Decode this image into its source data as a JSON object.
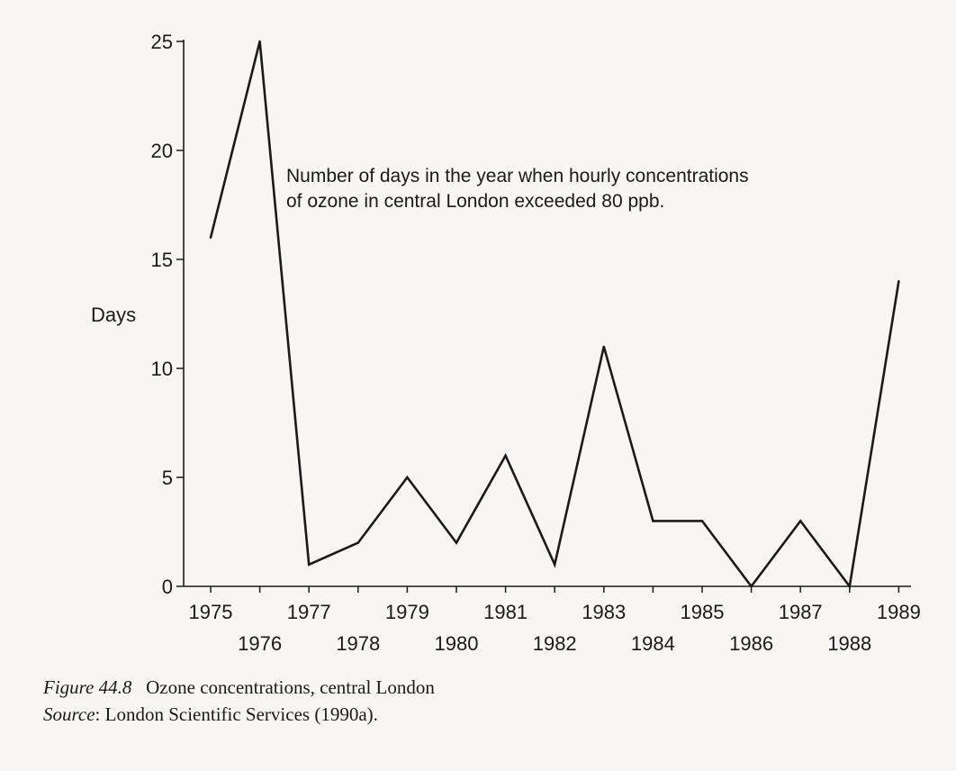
{
  "chart_data": {
    "type": "line",
    "ylabel": "Days",
    "xlabel": "",
    "ylim": [
      0,
      25
    ],
    "yticks": [
      0,
      5,
      10,
      15,
      20,
      25
    ],
    "x": [
      1975,
      1976,
      1977,
      1978,
      1979,
      1980,
      1981,
      1982,
      1983,
      1984,
      1985,
      1986,
      1987,
      1988,
      1989
    ],
    "x_tick_labels": [
      "1975",
      "1976",
      "1977",
      "1978",
      "1979",
      "1980",
      "1981",
      "1982",
      "1983",
      "1984",
      "1985",
      "1986",
      "1987",
      "1988",
      "1989"
    ],
    "series": [
      {
        "values": [
          16,
          25,
          1,
          2,
          5,
          2,
          6,
          1,
          11,
          3,
          3,
          0,
          3,
          0,
          14
        ]
      }
    ],
    "annotation": [
      "Number of days in the year when hourly concentrations",
      "of ozone in central London exceeded 80 ppb."
    ],
    "grid": false,
    "line_color": "#1a1a1a"
  },
  "caption": {
    "figure_label": "Figure 44.8",
    "figure_title": "Ozone concentrations, central London",
    "source_label": "Source",
    "source_text": ": London Scientific Services (1990a)."
  }
}
